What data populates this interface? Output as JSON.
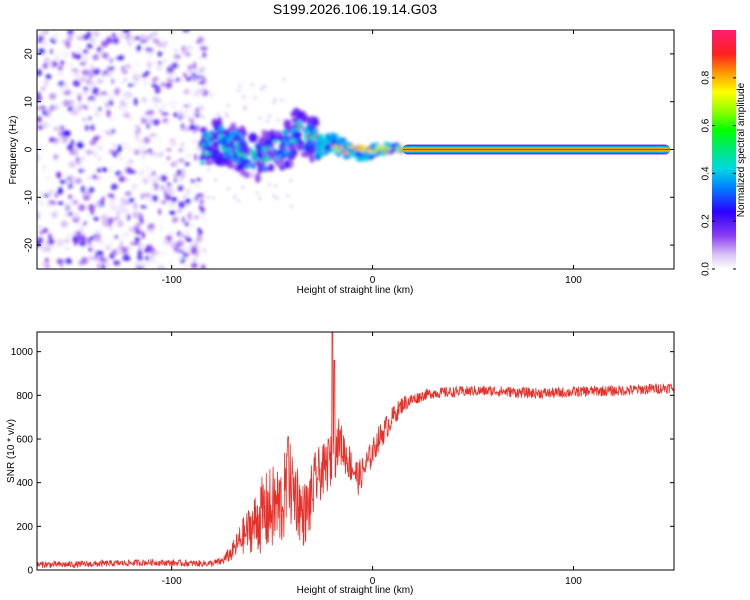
{
  "figure_title": "S199.2026.106.19.14.G03",
  "chart_data": [
    {
      "type": "heatmap",
      "title": "S199.2026.106.19.14.G03",
      "xlabel": "Height of straight line (km)",
      "ylabel": "Frequency (Hz)",
      "xlim": [
        -167,
        150
      ],
      "ylim": [
        -25,
        25
      ],
      "xticks": [
        -100,
        0,
        100
      ],
      "xtick_labels": [
        "-100",
        "0",
        "100"
      ],
      "yticks": [
        -20,
        -10,
        0,
        10,
        20
      ],
      "ytick_labels": [
        "-20",
        "-10",
        "0",
        "10",
        "20"
      ],
      "colorbar": {
        "label": "Normalized spectral amplitude",
        "range": [
          0,
          1
        ],
        "ticks": [
          0.0,
          0.2,
          0.4,
          0.6,
          0.8
        ],
        "tick_labels": [
          "0.0",
          "0.2",
          "0.4",
          "0.6",
          "0.8"
        ],
        "colormap": "rainbow"
      },
      "regions": [
        {
          "name": "noise",
          "x_range": [
            -167,
            -83
          ],
          "freq_range": [
            -25,
            25
          ],
          "amplitude": [
            0.0,
            0.25
          ]
        },
        {
          "name": "onset",
          "x_range": [
            -85,
            -28
          ],
          "freq_range": [
            -6,
            8
          ],
          "amplitude": [
            0.1,
            0.5
          ]
        },
        {
          "name": "transition",
          "x_range": [
            -28,
            15
          ],
          "freq_range": [
            -4,
            4
          ],
          "amplitude": [
            0.3,
            0.9
          ]
        },
        {
          "name": "steady_tone",
          "x_range": [
            15,
            148
          ],
          "freq_range": [
            -0.6,
            0.6
          ],
          "amplitude": [
            0.85,
            1.0
          ]
        }
      ]
    },
    {
      "type": "line",
      "xlabel": "Height of straight line (km)",
      "ylabel": "SNR (10 * v/v)",
      "xlim": [
        -167,
        150
      ],
      "ylim": [
        0,
        1090
      ],
      "xticks": [
        -100,
        0,
        100
      ],
      "xtick_labels": [
        "-100",
        "0",
        "100"
      ],
      "yticks": [
        0,
        200,
        400,
        600,
        800,
        1000
      ],
      "ytick_labels": [
        "0",
        "200",
        "400",
        "600",
        "800",
        "1000"
      ],
      "series": [
        {
          "name": "SNR",
          "color": "#e8302a",
          "x": [
            -167,
            -150,
            -130,
            -110,
            -90,
            -80,
            -75,
            -70,
            -65,
            -60,
            -55,
            -50,
            -45,
            -42,
            -38,
            -35,
            -32,
            -30,
            -28,
            -25,
            -22,
            -19,
            -17,
            -15,
            -12,
            -10,
            -7,
            -5,
            -2,
            0,
            3,
            6,
            10,
            15,
            20,
            25,
            30,
            40,
            50,
            60,
            70,
            80,
            90,
            100,
            110,
            120,
            130,
            140,
            148
          ],
          "values": [
            25,
            25,
            30,
            35,
            30,
            30,
            40,
            80,
            150,
            200,
            250,
            280,
            300,
            400,
            350,
            250,
            280,
            350,
            420,
            450,
            480,
            520,
            600,
            560,
            500,
            470,
            420,
            450,
            500,
            540,
            600,
            640,
            700,
            760,
            780,
            800,
            810,
            815,
            820,
            820,
            815,
            810,
            810,
            815,
            820,
            820,
            825,
            830,
            835
          ],
          "noise_amplitude": [
            15,
            15,
            15,
            15,
            15,
            15,
            20,
            40,
            80,
            120,
            180,
            200,
            200,
            200,
            180,
            150,
            150,
            150,
            140,
            120,
            120,
            120,
            100,
            100,
            90,
            80,
            80,
            70,
            70,
            60,
            60,
            60,
            50,
            40,
            30,
            25,
            25,
            25,
            25,
            25,
            25,
            25,
            25,
            25,
            25,
            25,
            25,
            25,
            25
          ],
          "spikes": [
            {
              "x": -42,
              "y": 610
            },
            {
              "x": -20,
              "y": 1090
            },
            {
              "x": -19,
              "y": 960
            },
            {
              "x": -22,
              "y": 600
            }
          ]
        }
      ]
    }
  ]
}
